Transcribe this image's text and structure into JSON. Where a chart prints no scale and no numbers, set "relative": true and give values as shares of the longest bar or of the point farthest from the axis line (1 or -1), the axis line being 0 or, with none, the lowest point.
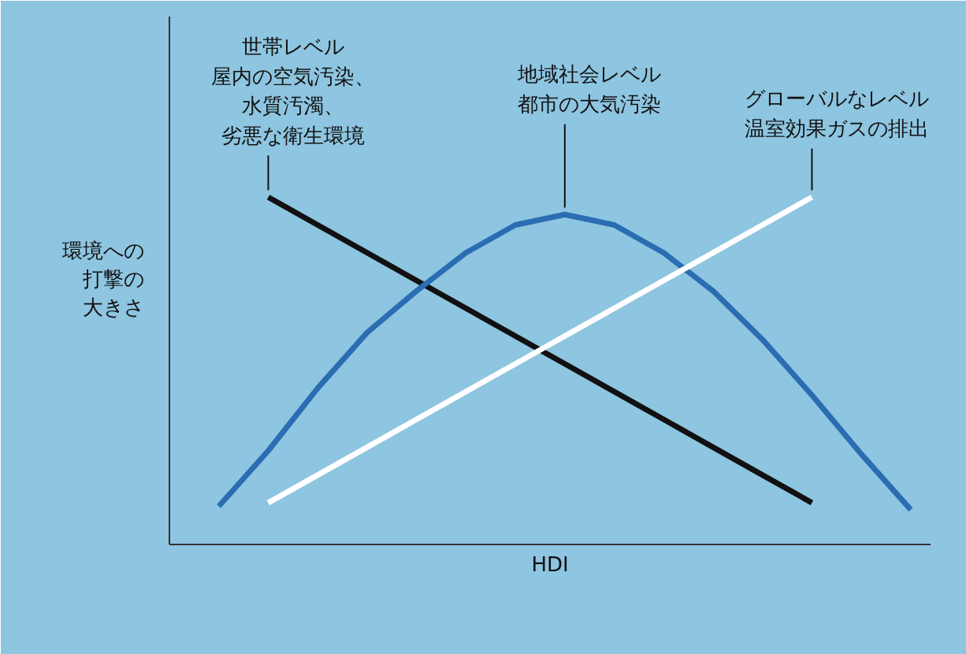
{
  "chart_data": {
    "type": "line",
    "relative": true,
    "xlabel": "HDI",
    "ylabel": "環境への打撃の大きさ",
    "grid": false,
    "marker": "none",
    "line_style": "solid",
    "categories": [
      null,
      null,
      null,
      null,
      null,
      null,
      null,
      null,
      null,
      null,
      null,
      null,
      null,
      null,
      null
    ],
    "series": [
      {
        "name": "世帯レベル屋内の空気汚染、水質汚濁、劣悪な衛生環境",
        "color": "#111111",
        "values": [
          null,
          1.0,
          0.92,
          0.84,
          0.76,
          0.68,
          0.6,
          0.52,
          0.44,
          0.36,
          0.28,
          0.2,
          0.12,
          null,
          null
        ]
      },
      {
        "name": "地域社会レベル都市の大気汚染",
        "color": "#2a6db3",
        "values": [
          0.11,
          0.27,
          0.45,
          0.61,
          0.73,
          0.84,
          0.92,
          0.95,
          0.92,
          0.84,
          0.73,
          0.59,
          0.43,
          0.26,
          0.1
        ]
      },
      {
        "name": "グローバルなレベル温室効果ガスの排出",
        "color": "#ffffff",
        "values": [
          null,
          0.12,
          0.2,
          0.28,
          0.36,
          0.44,
          0.52,
          0.6,
          0.68,
          0.76,
          0.84,
          0.92,
          1.0,
          null,
          null
        ]
      }
    ]
  }
}
